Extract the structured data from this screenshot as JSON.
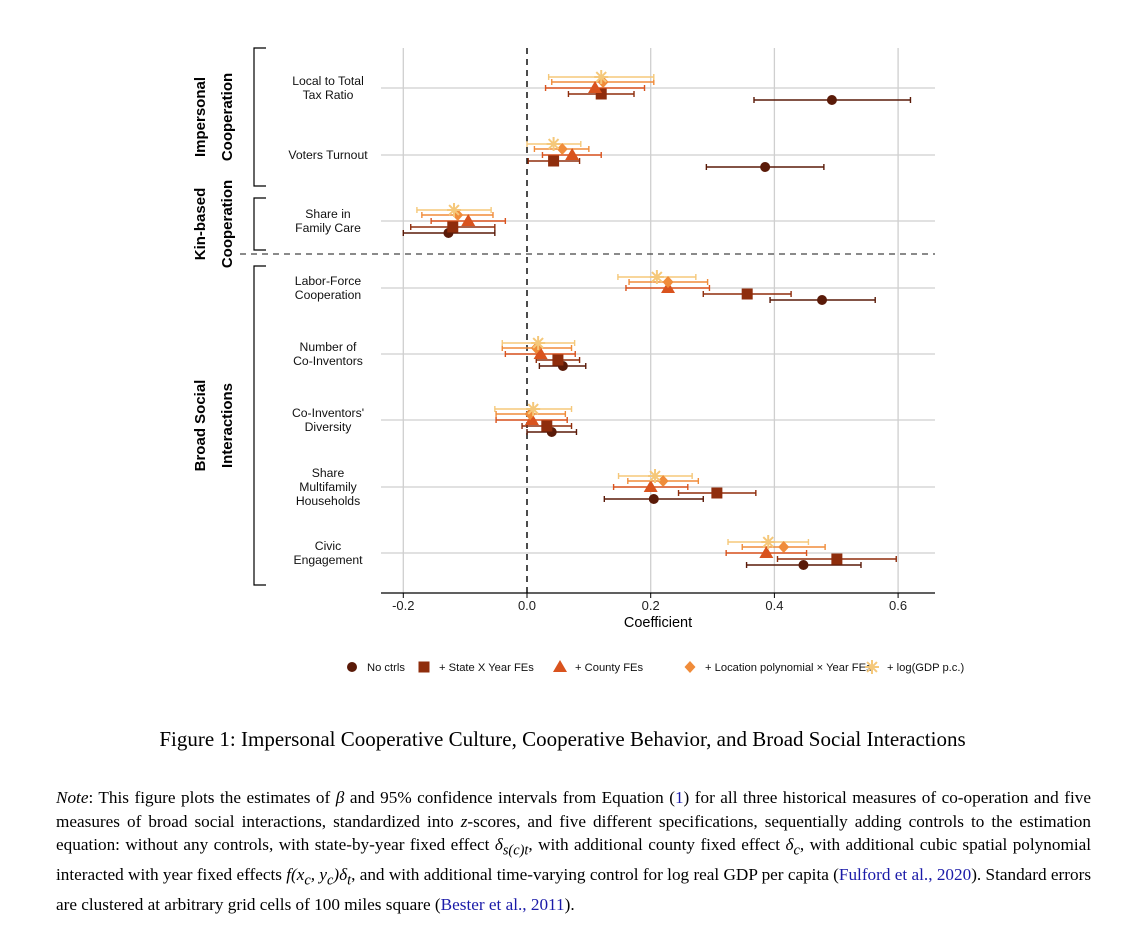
{
  "chart_data": {
    "type": "forest",
    "xlabel": "Coefficient",
    "xlim": [
      -0.24,
      0.66
    ],
    "xticks": [
      -0.2,
      0.0,
      0.2,
      0.4,
      0.6
    ],
    "xtick_labels": [
      "-0.2",
      "0.0",
      "0.2",
      "0.4",
      "0.6"
    ],
    "reference_line": 0.0,
    "outcomes": [
      {
        "key": "local_tax",
        "label_lines": [
          "Local to Total",
          "Tax Ratio"
        ]
      },
      {
        "key": "voters",
        "label_lines": [
          "Voters Turnout"
        ]
      },
      {
        "key": "family_care",
        "label_lines": [
          "Share in",
          "Family Care"
        ]
      },
      {
        "key": "labor_force",
        "label_lines": [
          "Labor-Force",
          "Cooperation"
        ]
      },
      {
        "key": "num_coinventors",
        "label_lines": [
          "Number of",
          "Co-Inventors"
        ]
      },
      {
        "key": "coinv_diversity",
        "label_lines": [
          "Co-Inventors'",
          "Diversity"
        ]
      },
      {
        "key": "multifamily",
        "label_lines": [
          "Share",
          "Multifamily",
          "Households"
        ]
      },
      {
        "key": "civic",
        "label_lines": [
          "Civic",
          "Engagement"
        ]
      }
    ],
    "groups": [
      {
        "label_lines": [
          "Impersonal",
          "Cooperation"
        ],
        "outcomes": [
          "local_tax",
          "voters"
        ]
      },
      {
        "label_lines": [
          "Kin-based",
          "Cooperation"
        ],
        "outcomes": [
          "family_care"
        ]
      },
      {
        "label_lines": [
          "Broad Social",
          "Interactions"
        ],
        "outcomes": [
          "labor_force",
          "num_coinventors",
          "coinv_diversity",
          "multifamily",
          "civic"
        ]
      }
    ],
    "series": [
      {
        "name": "No ctrls",
        "marker": "circle",
        "color": "#5a1a08",
        "estimates": [
          0.493,
          0.385,
          -0.127,
          0.477,
          0.058,
          0.04,
          0.205,
          0.447
        ],
        "ci_low": [
          0.367,
          0.29,
          -0.2,
          0.393,
          0.02,
          0.0,
          0.125,
          0.355
        ],
        "ci_high": [
          0.62,
          0.48,
          -0.052,
          0.563,
          0.095,
          0.08,
          0.285,
          0.54
        ]
      },
      {
        "name": "+ State X Year FEs",
        "marker": "square",
        "color": "#8f2d0c",
        "estimates": [
          0.12,
          0.043,
          -0.12,
          0.356,
          0.05,
          0.032,
          0.307,
          0.501
        ],
        "ci_low": [
          0.067,
          0.002,
          -0.188,
          0.285,
          0.015,
          -0.008,
          0.245,
          0.405
        ],
        "ci_high": [
          0.173,
          0.085,
          -0.052,
          0.427,
          0.085,
          0.072,
          0.37,
          0.597
        ]
      },
      {
        "name": "+ County FEs",
        "marker": "triangle",
        "color": "#d9531e",
        "estimates": [
          0.11,
          0.073,
          -0.095,
          0.228,
          0.022,
          0.008,
          0.2,
          0.387
        ],
        "ci_low": [
          0.03,
          0.025,
          -0.155,
          0.16,
          -0.035,
          -0.05,
          0.14,
          0.322
        ],
        "ci_high": [
          0.19,
          0.12,
          -0.035,
          0.295,
          0.078,
          0.065,
          0.26,
          0.452
        ]
      },
      {
        "name": "+ Location polynomial × Year FEs",
        "marker": "diamond",
        "color": "#f08c3a",
        "estimates": [
          0.123,
          0.057,
          -0.112,
          0.228,
          0.015,
          0.005,
          0.22,
          0.415
        ],
        "ci_low": [
          0.04,
          0.012,
          -0.17,
          0.165,
          -0.04,
          -0.05,
          0.163,
          0.348
        ],
        "ci_high": [
          0.205,
          0.1,
          -0.055,
          0.292,
          0.072,
          0.062,
          0.277,
          0.482
        ]
      },
      {
        "name": "+ log(GDP p.c.)",
        "marker": "asterisk",
        "color": "#f5c87a",
        "estimates": [
          0.12,
          0.043,
          -0.118,
          0.21,
          0.018,
          0.01,
          0.207,
          0.39
        ],
        "ci_low": [
          0.035,
          0.0,
          -0.178,
          0.147,
          -0.04,
          -0.052,
          0.148,
          0.325
        ],
        "ci_high": [
          0.205,
          0.087,
          -0.058,
          0.273,
          0.077,
          0.072,
          0.267,
          0.455
        ]
      }
    ]
  },
  "caption": "Figure 1: Impersonal Cooperative Culture, Cooperative Behavior, and Broad Social Interactions",
  "note": {
    "label": "Note",
    "part1": ": This figure plots the estimates of ",
    "beta": "β",
    "part2": " and 95% confidence intervals from Equation (",
    "eq_ref": "1",
    "part3": ") for all three historical measures of co-operation and five measures of broad social interactions, standardized into ",
    "z": "z",
    "part4": "-scores, and five different specifications, sequentially adding controls to the estimation equation: without any controls, with state-by-year fixed effect ",
    "fe1": "δ",
    "fe1_sub": "s(c)t",
    "part5": ", with additional county fixed effect ",
    "fe2": "δ",
    "fe2_sub": "c",
    "part6": ", with additional cubic spatial polynomial interacted with year fixed effects ",
    "poly": "f(x",
    "poly_sub1": "c",
    "poly_mid": ", y",
    "poly_sub2": "c",
    "poly_end": ")δ",
    "poly_sub3": "t",
    "part7": ", and with additional time-varying control for log real GDP per capita (",
    "cite1_author": "Fulford et al.",
    "cite1_sep": ", ",
    "cite1_year": "2020",
    "part8": "). Standard errors are clustered at arbitrary grid cells of 100 miles square (",
    "cite2_author": "Bester et al.",
    "cite2_sep": ", ",
    "cite2_year": "2011",
    "part9": ")."
  }
}
